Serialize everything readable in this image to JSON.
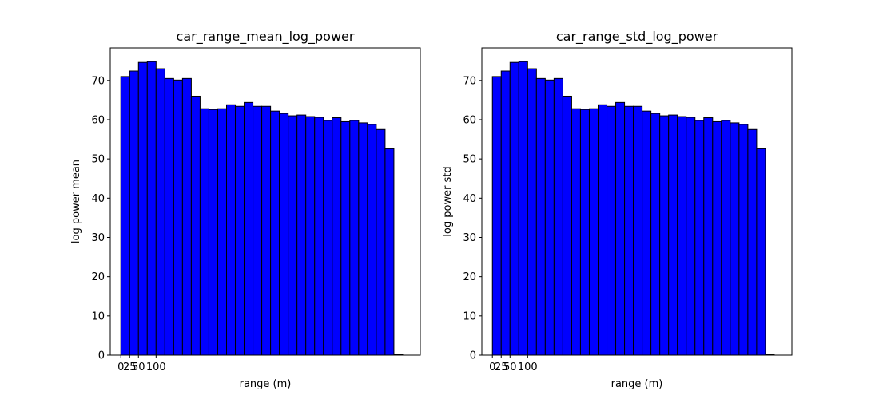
{
  "colors": {
    "bar_fill": "#0000ff",
    "bar_edge": "#000000",
    "axes": "#000000",
    "background": "#ffffff"
  },
  "chart_data": [
    {
      "type": "bar",
      "title": "car_range_mean_log_power",
      "xlabel": "range (m)",
      "ylabel": "log power mean",
      "xticks": [
        0,
        25,
        50,
        100
      ],
      "xtick_labels": [
        "0",
        "25",
        "50",
        "100"
      ],
      "yticks": [
        0,
        10,
        20,
        30,
        40,
        50,
        60,
        70
      ],
      "ytick_labels": [
        "0",
        "10",
        "20",
        "30",
        "40",
        "50",
        "60",
        "70"
      ],
      "xlim": [
        -30,
        850
      ],
      "ylim": [
        0,
        78.3
      ],
      "bar_width": 25,
      "x": [
        0,
        25,
        50,
        75,
        100,
        125,
        150,
        175,
        200,
        225,
        250,
        275,
        300,
        325,
        350,
        375,
        400,
        425,
        450,
        475,
        500,
        525,
        550,
        575,
        600,
        625,
        650,
        675,
        700,
        725,
        750,
        775,
        800
      ],
      "values": [
        71.0,
        72.4,
        74.6,
        74.8,
        73.0,
        70.5,
        70.1,
        70.5,
        66.0,
        62.8,
        62.6,
        62.8,
        63.8,
        63.4,
        64.4,
        63.4,
        63.4,
        62.2,
        61.6,
        61.0,
        61.2,
        60.8,
        60.6,
        59.8,
        60.5,
        59.5,
        59.8,
        59.2,
        58.8,
        57.5,
        52.6,
        0.1,
        0.0
      ],
      "grid": false,
      "legend": false
    },
    {
      "type": "bar",
      "title": "car_range_std_log_power",
      "xlabel": "range (m)",
      "ylabel": "log power std",
      "xticks": [
        0,
        25,
        50,
        100
      ],
      "xtick_labels": [
        "0",
        "25",
        "50",
        "100"
      ],
      "yticks": [
        0,
        10,
        20,
        30,
        40,
        50,
        60,
        70
      ],
      "ytick_labels": [
        "0",
        "10",
        "20",
        "30",
        "40",
        "50",
        "60",
        "70"
      ],
      "xlim": [
        -30,
        850
      ],
      "ylim": [
        0,
        78.3
      ],
      "bar_width": 25,
      "x": [
        0,
        25,
        50,
        75,
        100,
        125,
        150,
        175,
        200,
        225,
        250,
        275,
        300,
        325,
        350,
        375,
        400,
        425,
        450,
        475,
        500,
        525,
        550,
        575,
        600,
        625,
        650,
        675,
        700,
        725,
        750,
        775,
        800
      ],
      "values": [
        71.0,
        72.4,
        74.6,
        74.8,
        73.0,
        70.5,
        70.1,
        70.5,
        66.0,
        62.8,
        62.6,
        62.8,
        63.8,
        63.4,
        64.4,
        63.4,
        63.4,
        62.2,
        61.6,
        61.0,
        61.2,
        60.8,
        60.6,
        59.8,
        60.5,
        59.5,
        59.8,
        59.2,
        58.8,
        57.5,
        52.6,
        0.1,
        0.0
      ],
      "grid": false,
      "legend": false
    }
  ]
}
